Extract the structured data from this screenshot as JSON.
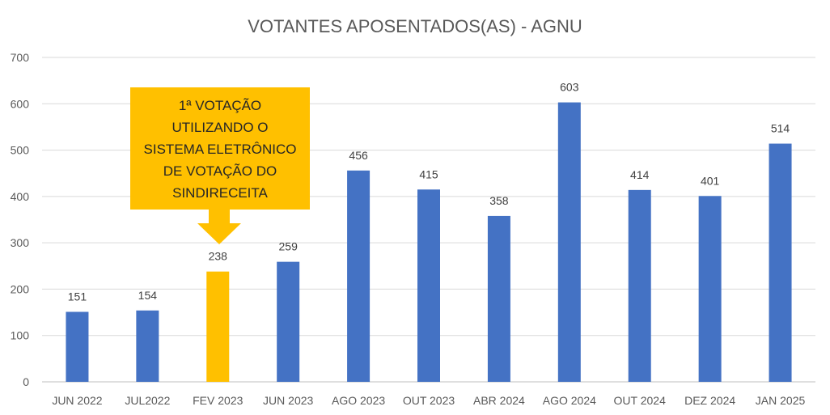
{
  "chart_data": {
    "type": "bar",
    "title": "VOTANTES APOSENTADOS(AS) - AGNU",
    "xlabel": "",
    "ylabel": "",
    "ylim": [
      0,
      700
    ],
    "yticks": [
      0,
      100,
      200,
      300,
      400,
      500,
      600,
      700
    ],
    "grid": true,
    "categories": [
      "JUN 2022",
      "JUL2022",
      "FEV 2023",
      "JUN 2023",
      "AGO 2023",
      "OUT 2023",
      "ABR 2024",
      "AGO 2024",
      "OUT 2024",
      "DEZ 2024",
      "JAN 2025"
    ],
    "values": [
      151,
      154,
      238,
      259,
      456,
      415,
      358,
      603,
      414,
      401,
      514
    ],
    "highlight_index": 2,
    "colors": {
      "bar": "#4472C4",
      "highlight": "#FFC000",
      "callout": "#FFC000",
      "grid": "#D9D9D9"
    },
    "annotation": {
      "category": "FEV 2023",
      "lines": [
        "1ª VOTAÇÃO",
        "UTILIZANDO O",
        "SISTEMA ELETRÔNICO",
        "DE VOTAÇÃO DO",
        "SINDIRECEITA"
      ]
    }
  }
}
